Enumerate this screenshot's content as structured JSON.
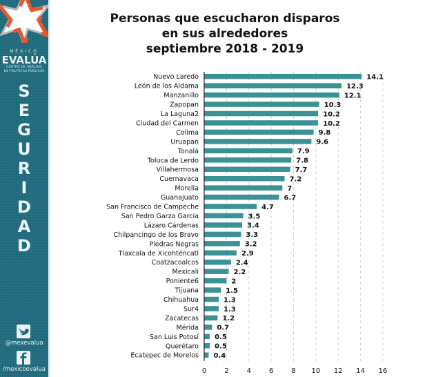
{
  "sidebar": {
    "brand_top": "MÉXICO",
    "brand_main": "EVALÚA",
    "brand_sub1": "CENTRO DE ANÁLISIS",
    "brand_sub2": "DE POLÍTICAS PÚBLICAS",
    "section_letters": [
      "S",
      "E",
      "G",
      "U",
      "R",
      "I",
      "D",
      "A",
      "D"
    ],
    "twitter_handle": "@mexevalua",
    "facebook_handle": "/mexicoevalua",
    "icons": {
      "twitter": "twitter-icon",
      "facebook": "facebook-icon",
      "logo": "star-logo-icon"
    },
    "colors": {
      "background": "#1f6a7c",
      "star_orange": "#e8562a",
      "star_gray": "#b9b9b9"
    }
  },
  "chart_data": {
    "type": "bar",
    "orientation": "horizontal",
    "title_lines": [
      "Personas que escucharon disparos",
      "en sus alrededores",
      "septiembre 2018 - 2019"
    ],
    "categories": [
      "Nuevo Laredo",
      "León de los Aldama",
      "Manzanillo",
      "Zapopan",
      "La Laguna2",
      "Ciudad del Carmen",
      "Colima",
      "Uruapan",
      "Tonalá",
      "Toluca de Lerdo",
      "Villahermosa",
      "Cuernavaca",
      "Morelia",
      "Guanajuato",
      "San Francisco de Campeche",
      "San Pedro Garza García",
      "Lázaro Cárdenas",
      "Chilpancingo de los Bravo",
      "Piedras Negras",
      "Tlaxcala de Xicohténcatl",
      "Coatzacoalcos",
      "Mexicali",
      "Poniente6",
      "Tijuana",
      "Chihuahua",
      "Sur4",
      "Zacatecas",
      "Mérida",
      "San Luis Potosí",
      "Querétaro",
      "Ecatepec de Morelos"
    ],
    "values": [
      14.1,
      12.3,
      12.1,
      10.3,
      10.2,
      10.2,
      9.8,
      9.6,
      7.9,
      7.8,
      7.7,
      7.2,
      7,
      6.7,
      4.7,
      3.5,
      3.4,
      3.3,
      3.2,
      2.9,
      2.4,
      2.2,
      2,
      1.5,
      1.3,
      1.3,
      1.2,
      0.7,
      0.5,
      0.5,
      0.4
    ],
    "value_labels": [
      "14.1",
      "12.3",
      "12.1",
      "10.3",
      "10.2",
      "10.2",
      "9.8",
      "9.6",
      "7.9",
      "7.8",
      "7.7",
      "7.2",
      "7",
      "6.7",
      "4.7",
      "3.5",
      "3.4",
      "3.3",
      "3.2",
      "2.9",
      "2.4",
      "2.2",
      "2",
      "1.5",
      "1.3",
      "1.3",
      "1.2",
      "0.7",
      "0.5",
      "0.5",
      "0.4"
    ],
    "xlim": [
      0,
      16
    ],
    "xticks": [
      0,
      2,
      4,
      6,
      8,
      10,
      12,
      14,
      16
    ],
    "xlabel": "",
    "ylabel": "",
    "grid": "vertical-dashed",
    "legend": "none",
    "bar_color": "#3a9296"
  }
}
